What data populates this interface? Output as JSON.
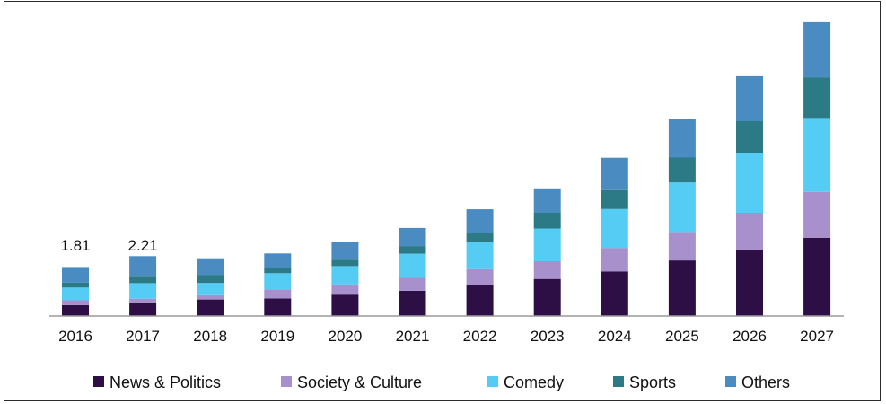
{
  "chart_data": {
    "type": "bar",
    "stacked": true,
    "title": "",
    "xlabel": "",
    "ylabel": "",
    "categories": [
      "2016",
      "2017",
      "2018",
      "2019",
      "2020",
      "2021",
      "2022",
      "2023",
      "2024",
      "2025",
      "2026",
      "2027"
    ],
    "series": [
      {
        "name": "News & Politics",
        "color": "#2e0f45",
        "values": [
          0.4,
          0.47,
          0.61,
          0.65,
          0.79,
          0.93,
          1.13,
          1.37,
          1.64,
          2.05,
          2.43,
          2.89
        ]
      },
      {
        "name": "Society & Culture",
        "color": "#a890cc",
        "values": [
          0.18,
          0.17,
          0.16,
          0.33,
          0.38,
          0.48,
          0.6,
          0.65,
          0.87,
          1.05,
          1.38,
          1.69
        ]
      },
      {
        "name": "Comedy",
        "color": "#54ccf4",
        "values": [
          0.47,
          0.57,
          0.45,
          0.6,
          0.67,
          0.89,
          1.0,
          1.21,
          1.44,
          1.83,
          2.22,
          2.73
        ]
      },
      {
        "name": "Sports",
        "color": "#2b7a86",
        "values": [
          0.18,
          0.27,
          0.3,
          0.18,
          0.24,
          0.28,
          0.35,
          0.58,
          0.7,
          0.92,
          1.16,
          1.5
        ]
      },
      {
        "name": "Others",
        "color": "#4a8bc2",
        "values": [
          0.58,
          0.73,
          0.61,
          0.55,
          0.65,
          0.67,
          0.86,
          0.9,
          1.19,
          1.44,
          1.66,
          2.06
        ]
      }
    ],
    "data_labels": [
      {
        "category": "2016",
        "text": "1.81"
      },
      {
        "category": "2017",
        "text": "2.21"
      }
    ],
    "ylim": [
      0,
      11
    ],
    "grid": false,
    "legend": "bottom"
  }
}
